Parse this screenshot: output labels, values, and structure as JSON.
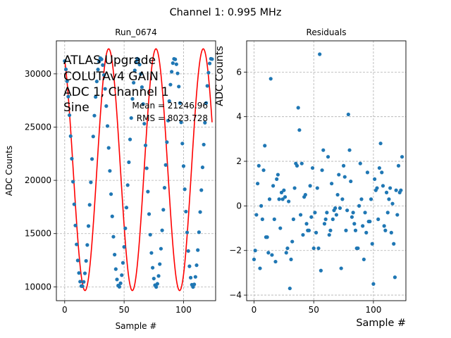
{
  "figure": {
    "suptitle": "Channel 1: 0.995 MHz"
  },
  "colors": {
    "markers": "#1f77b4",
    "fit": "#ff0000",
    "grid": "#b0b0b0"
  },
  "chart_data": [
    {
      "type": "scatter",
      "title": "Run_0674",
      "xlabel": "Sample #",
      "ylabel": "ADC Counts",
      "xlim": [
        -7,
        127
      ],
      "ylim": [
        8700,
        33100
      ],
      "xticks": [
        0,
        50,
        100
      ],
      "yticks": [
        10000,
        15000,
        20000,
        25000,
        30000
      ],
      "grid": true,
      "annotation_lines": [
        "ATLAS Upgrade",
        "COLUTAv4 GAIN",
        "ADC 1, Channel 1",
        "Sine"
      ],
      "stats": {
        "mean_label": "Mean = 21246.96",
        "rms_label": "RMS = 8023.728"
      },
      "fit": {
        "name": "sine fit",
        "amplitude": 11350,
        "offset": 21000,
        "period": 39.8,
        "peak_sample": 37,
        "x_range": [
          0,
          124
        ]
      },
      "series": [
        {
          "values_x": [
            0,
            1,
            2,
            3,
            4,
            5,
            6,
            7,
            8,
            9,
            10,
            11,
            12,
            13,
            14,
            15,
            16,
            17,
            18,
            19,
            20,
            21,
            22,
            23,
            24,
            25,
            26,
            27,
            28,
            29,
            30,
            31,
            32,
            33,
            34,
            35,
            36,
            37,
            38,
            39,
            40,
            41,
            42,
            43,
            44,
            45,
            46,
            47,
            48,
            49,
            50,
            51,
            52,
            53,
            54,
            55,
            56,
            57,
            58,
            59,
            60,
            61,
            62,
            63,
            64,
            65,
            66,
            67,
            68,
            69,
            70,
            71,
            72,
            73,
            74,
            75,
            76,
            77,
            78,
            79,
            80,
            81,
            82,
            83,
            84,
            85,
            86,
            87,
            88,
            89,
            90,
            91,
            92,
            93,
            94,
            95,
            96,
            97,
            98,
            99,
            100,
            101,
            102,
            103,
            104,
            105,
            106,
            107,
            108,
            109,
            110,
            111,
            112,
            113,
            114,
            115,
            116,
            117,
            118,
            119,
            120,
            121,
            122,
            123,
            124
          ],
          "values_y": [
            30330,
            29600,
            28560,
            27210,
            25580,
            23740,
            21760,
            19740,
            17760,
            15900,
            14240,
            12830,
            11730,
            10970,
            10580,
            10570,
            10950,
            11700,
            12790,
            14190,
            15850,
            17710,
            19690,
            21730,
            23710,
            25540,
            27180,
            28540,
            29590,
            30280,
            30580,
            30480,
            29980,
            29110,
            27890,
            26380,
            24630,
            22710,
            20690,
            18650,
            16700,
            14910,
            13340,
            12070,
            11160,
            10630,
            10520,
            10830,
            11540,
            12620,
            14020,
            15650,
            17470,
            19440,
            21450,
            23450,
            25330,
            27010,
            28430,
            29510,
            30220,
            30540,
            30470,
            30020,
            29200,
            28040,
            26560,
            24830,
            22930,
            20920,
            18870,
            16900,
            15090,
            13490,
            12190,
            11240,
            10660,
            10500,
            10780,
            11470,
            12510,
            13860,
            15470,
            17280,
            19210,
            21210,
            23210,
            25100,
            26810,
            28260,
            29390,
            30150,
            30520,
            30480,
            30050,
            29250,
            28090,
            26640,
            24950,
            23090,
            21110,
            19080,
            17120,
            15290,
            13660,
            12320,
            11320,
            10700,
            10500,
            10730,
            11390,
            12410,
            13740,
            15310,
            17080,
            19000,
            21000,
            23000,
            24920,
            26650,
            28150,
            29310,
            30120,
            30530,
            30500
          ],
          "display_scale": {
            "value": 1.07,
            "offset": -1250
          }
        }
      ]
    },
    {
      "type": "scatter",
      "title": "Residuals",
      "xlabel": "Sample #",
      "ylabel": "ADC Counts",
      "xlim": [
        -6.2,
        127.2
      ],
      "ylim": [
        -4.25,
        7.4
      ],
      "xticks": [
        0,
        50,
        100
      ],
      "yticks": [
        -4,
        -2,
        0,
        2,
        4,
        6
      ],
      "grid": true,
      "series": [
        {
          "x": [
            0,
            1,
            2,
            3,
            4,
            5,
            6,
            7,
            8,
            9,
            10,
            11,
            12,
            13,
            14,
            15,
            16,
            17,
            18,
            19,
            20,
            21,
            22,
            23,
            24,
            25,
            26,
            27,
            28,
            29,
            30,
            31,
            32,
            33,
            34,
            35,
            36,
            37,
            38,
            39,
            40,
            41,
            42,
            43,
            44,
            45,
            46,
            47,
            48,
            49,
            50,
            51,
            52,
            53,
            54,
            55,
            56,
            57,
            58,
            59,
            60,
            61,
            62,
            63,
            64,
            65,
            66,
            67,
            68,
            69,
            70,
            71,
            72,
            73,
            74,
            75,
            76,
            77,
            78,
            79,
            80,
            81,
            82,
            83,
            84,
            85,
            86,
            87,
            88,
            89,
            90,
            91,
            92,
            93,
            94,
            95,
            96,
            97,
            98,
            99,
            100,
            101,
            102,
            103,
            104,
            105,
            106,
            107,
            108,
            109,
            110,
            111,
            112,
            113,
            114,
            115,
            116,
            117,
            118,
            119,
            120,
            121,
            122,
            123,
            124
          ],
          "y": [
            -2.4,
            -2.0,
            -0.4,
            1.0,
            1.8,
            -2.8,
            0.0,
            -0.6,
            1.6,
            2.7,
            -1.4,
            -1.4,
            -2.1,
            0.3,
            5.7,
            -2.2,
            0.9,
            -0.6,
            -2.5,
            1.2,
            1.4,
            0.3,
            -1.0,
            0.6,
            0.3,
            0.7,
            0.4,
            -2.1,
            -1.9,
            0.2,
            -3.7,
            -2.4,
            -1.6,
            -0.6,
            0.8,
            1.9,
            1.8,
            4.4,
            3.4,
            -0.4,
            1.9,
            -1.3,
            0.4,
            0.5,
            -0.8,
            -1.1,
            -1.1,
            0.9,
            -0.5,
            1.7,
            -1.9,
            -0.3,
            -1.2,
            0.8,
            -1.9,
            6.8,
            -2.9,
            1.6,
            2.5,
            -0.8,
            -0.6,
            -0.3,
            2.2,
            -1.3,
            -1.1,
            1.0,
            -0.6,
            -0.2,
            -0.1,
            -0.4,
            0.5,
            1.4,
            -0.1,
            -2.8,
            0.3,
            1.8,
            1.3,
            -1.1,
            -0.2,
            4.1,
            2.5,
            1.1,
            -0.5,
            -0.3,
            -0.8,
            -1.1,
            -1.9,
            -1.9,
            0.0,
            1.9,
            0.3,
            -0.9,
            -2.4,
            -0.3,
            -1.2,
            1.5,
            -0.7,
            -0.7,
            0.3,
            -1.7,
            -3.5,
            1.2,
            0.7,
            0.8,
            -0.6,
            1.7,
            2.8,
            1.5,
            0.9,
            -0.9,
            -1.1,
            0.6,
            -0.3,
            0.3,
            0.8,
            -1.2,
            0.1,
            -1.7,
            -3.2,
            0.7,
            -0.4,
            1.8,
            0.6,
            0.7,
            2.2
          ]
        }
      ]
    }
  ]
}
